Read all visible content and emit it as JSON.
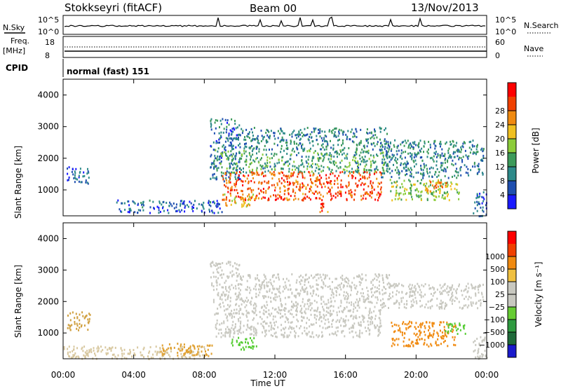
{
  "header": {
    "title": "Stokkseyri (fitACF)",
    "beam": "Beam 00",
    "date": "13/Nov/2013"
  },
  "params": {
    "nsky_label": "N.Sky",
    "nsky_top": "10^5",
    "nsky_bottom": "10^0",
    "nsearch_label": "N.Search",
    "nsearch_top": "10^5",
    "nsearch_bottom": "10^0",
    "freq_label": "Freq.",
    "freq_unit": "[MHz]",
    "freq_top": "18",
    "freq_bottom": "8",
    "nave_label": "Nave",
    "nave_top": "60",
    "nave_bottom": "0",
    "cpid_label": "CPID",
    "cpid_value": "normal (fast) 151"
  },
  "chart_data": [
    {
      "type": "heatmap",
      "name": "power",
      "ylabel": "Slant Range [km]",
      "xlabel": "",
      "yticks": [
        1000,
        2000,
        3000,
        4000
      ],
      "ylim": [
        180,
        4500
      ],
      "xlim": [
        0,
        24
      ],
      "colorbar": {
        "label": "Power [dB]",
        "ticks": [
          "4",
          "8",
          "12",
          "16",
          "20",
          "24",
          "28"
        ],
        "colors": [
          "#1a1aff",
          "#1f4fb0",
          "#2d8a8a",
          "#3c9a5a",
          "#8ccc3a",
          "#f0c020",
          "#f08a10",
          "#f04000",
          "#ff0000"
        ]
      },
      "bands": [
        {
          "t0": 0.2,
          "t1": 1.5,
          "r0": 1200,
          "r1": 1750,
          "v": 0.15
        },
        {
          "t0": 3.0,
          "t1": 9.0,
          "r0": 300,
          "r1": 700,
          "v": 0.15
        },
        {
          "t0": 8.3,
          "t1": 10.0,
          "r0": 1300,
          "r1": 3300,
          "v": 0.2
        },
        {
          "t0": 8.5,
          "t1": 18.5,
          "r0": 1550,
          "r1": 2300,
          "v": 0.35
        },
        {
          "t0": 10.0,
          "t1": 18.5,
          "r0": 2300,
          "r1": 3000,
          "v": 0.25
        },
        {
          "t0": 9.0,
          "t1": 18.0,
          "r0": 700,
          "r1": 1600,
          "v": 0.85
        },
        {
          "t0": 9.0,
          "t1": 11.0,
          "r0": 500,
          "r1": 900,
          "v": 0.65
        },
        {
          "t0": 14.5,
          "t1": 15.0,
          "r0": 300,
          "r1": 650,
          "v": 0.85
        },
        {
          "t0": 18.0,
          "t1": 23.8,
          "r0": 1400,
          "r1": 2600,
          "v": 0.25
        },
        {
          "t0": 18.5,
          "t1": 22.5,
          "r0": 700,
          "r1": 1350,
          "v": 0.5
        },
        {
          "t0": 20.5,
          "t1": 22.0,
          "r0": 950,
          "r1": 1300,
          "v": 0.7
        },
        {
          "t0": 23.2,
          "t1": 24.0,
          "r0": 200,
          "r1": 1000,
          "v": 0.15
        }
      ]
    },
    {
      "type": "heatmap",
      "name": "velocity",
      "ylabel": "Slant Range [km]",
      "xlabel": "Time UT",
      "xticks": [
        "00:00",
        "04:00",
        "08:00",
        "12:00",
        "16:00",
        "20:00",
        "00:00"
      ],
      "yticks": [
        1000,
        2000,
        3000,
        4000
      ],
      "ylim": [
        180,
        4500
      ],
      "xlim": [
        0,
        24
      ],
      "colorbar": {
        "label": "Velocity [m s⁻¹]",
        "ticks": [
          "1000",
          "500",
          "100",
          "25",
          "−25",
          "−100",
          "−500",
          "−1000"
        ],
        "colors": [
          "#1a1acc",
          "#1f6a3a",
          "#2f9a40",
          "#66cc33",
          "#c8c8c0",
          "#c8c8c0",
          "#f0c040",
          "#f08a10",
          "#f04000",
          "#ff0000"
        ]
      },
      "bands": [
        {
          "t0": 0.2,
          "t1": 1.5,
          "r0": 1100,
          "r1": 1700,
          "c": "#d0a040"
        },
        {
          "t0": 0.0,
          "t1": 8.0,
          "r0": 200,
          "r1": 600,
          "c": "#d8c8a0"
        },
        {
          "t0": 5.5,
          "t1": 8.5,
          "r0": 300,
          "r1": 700,
          "c": "#e0a030"
        },
        {
          "t0": 8.5,
          "t1": 18.0,
          "r0": 900,
          "r1": 2300,
          "c": "#c8c8c0"
        },
        {
          "t0": 8.3,
          "t1": 10.0,
          "r0": 2300,
          "r1": 3300,
          "c": "#c8c8c0"
        },
        {
          "t0": 10.0,
          "t1": 18.5,
          "r0": 2300,
          "r1": 2900,
          "c": "#c8c8c0"
        },
        {
          "t0": 18.0,
          "t1": 23.8,
          "r0": 1800,
          "r1": 2600,
          "c": "#c8c8c0"
        },
        {
          "t0": 9.5,
          "t1": 11.0,
          "r0": 500,
          "r1": 900,
          "c": "#55cc33"
        },
        {
          "t0": 18.5,
          "t1": 22.3,
          "r0": 600,
          "r1": 1400,
          "c": "#f08a10"
        },
        {
          "t0": 21.5,
          "t1": 23.0,
          "r0": 1000,
          "r1": 1350,
          "c": "#55cc33"
        },
        {
          "t0": 23.2,
          "t1": 24.0,
          "r0": 200,
          "r1": 1000,
          "c": "#c8c8c0"
        }
      ]
    }
  ]
}
